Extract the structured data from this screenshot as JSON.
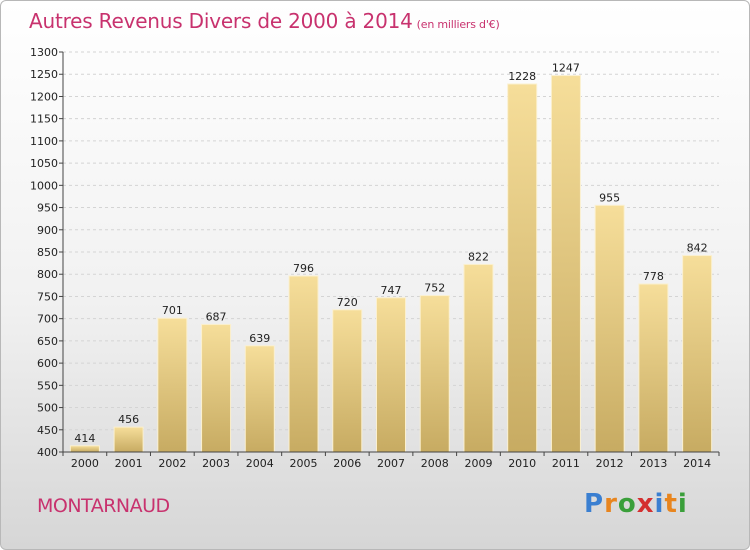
{
  "header": {
    "title": "Autres Revenus Divers de 2000 à 2014",
    "subtitle": "(en milliers d'€)"
  },
  "footer": {
    "place": "MONTARNAUD",
    "logo": {
      "text": "Proxiti",
      "letters": [
        {
          "ch": "P",
          "color": "#3a7fd1"
        },
        {
          "ch": "r",
          "color": "#e8851e"
        },
        {
          "ch": "o",
          "color": "#3a9f3a"
        },
        {
          "ch": "x",
          "color": "#d43030"
        },
        {
          "ch": "i",
          "color": "#3a7fd1"
        },
        {
          "ch": "t",
          "color": "#e8851e"
        },
        {
          "ch": "i",
          "color": "#3a9f3a"
        }
      ]
    }
  },
  "chart_data": {
    "type": "bar",
    "title": "Autres Revenus Divers de 2000 à 2014",
    "subtitle": "(en milliers d'€)",
    "categories": [
      "2000",
      "2001",
      "2002",
      "2003",
      "2004",
      "2005",
      "2006",
      "2007",
      "2008",
      "2009",
      "2010",
      "2011",
      "2012",
      "2013",
      "2014"
    ],
    "values": [
      414,
      456,
      701,
      687,
      639,
      796,
      720,
      747,
      752,
      822,
      1228,
      1247,
      955,
      778,
      842
    ],
    "ylim": [
      400,
      1300
    ],
    "yticks": [
      400,
      450,
      500,
      550,
      600,
      650,
      700,
      750,
      800,
      850,
      900,
      950,
      1000,
      1050,
      1100,
      1150,
      1200,
      1250,
      1300
    ],
    "grid": true,
    "bar_color": "#e8cf86"
  }
}
